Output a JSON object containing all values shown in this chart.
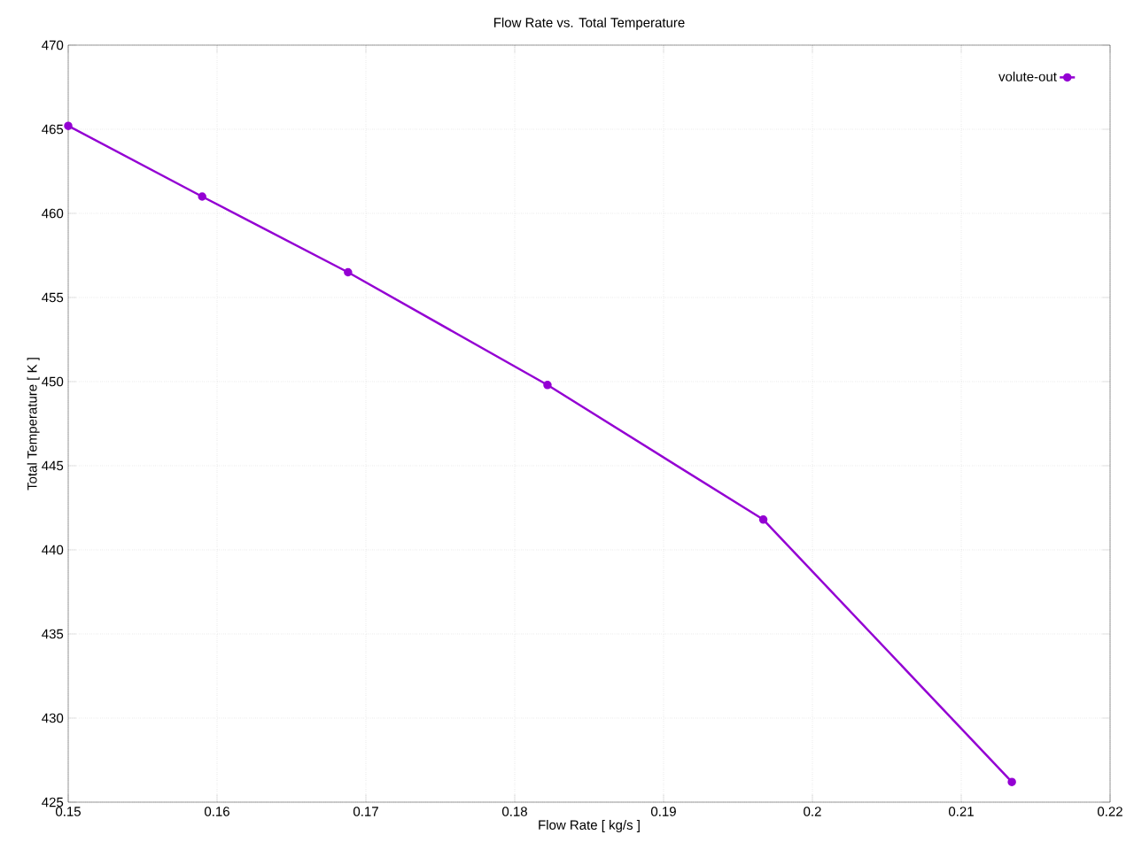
{
  "chart_data": {
    "type": "line",
    "title": "Flow Rate vs. Total Temperature",
    "xlabel": "Flow Rate [ kg/s ]",
    "ylabel": "Total Temperature [ K ]",
    "x": [
      0.15,
      0.159,
      0.1688,
      0.1822,
      0.1967,
      0.2134
    ],
    "series": [
      {
        "name": "volute-out",
        "color": "#9400d3",
        "values": [
          465.2,
          461.0,
          456.5,
          449.8,
          441.8,
          426.2
        ]
      }
    ],
    "xlim": [
      0.15,
      0.22
    ],
    "xticks": [
      0.15,
      0.16,
      0.17,
      0.18,
      0.19,
      0.2,
      0.21,
      0.22
    ],
    "ylim": [
      425,
      470
    ],
    "yticks": [
      425,
      430,
      435,
      440,
      445,
      450,
      455,
      460,
      465,
      470
    ],
    "grid": true,
    "legend": "top right",
    "marker": "circle",
    "line_style": "solid"
  }
}
